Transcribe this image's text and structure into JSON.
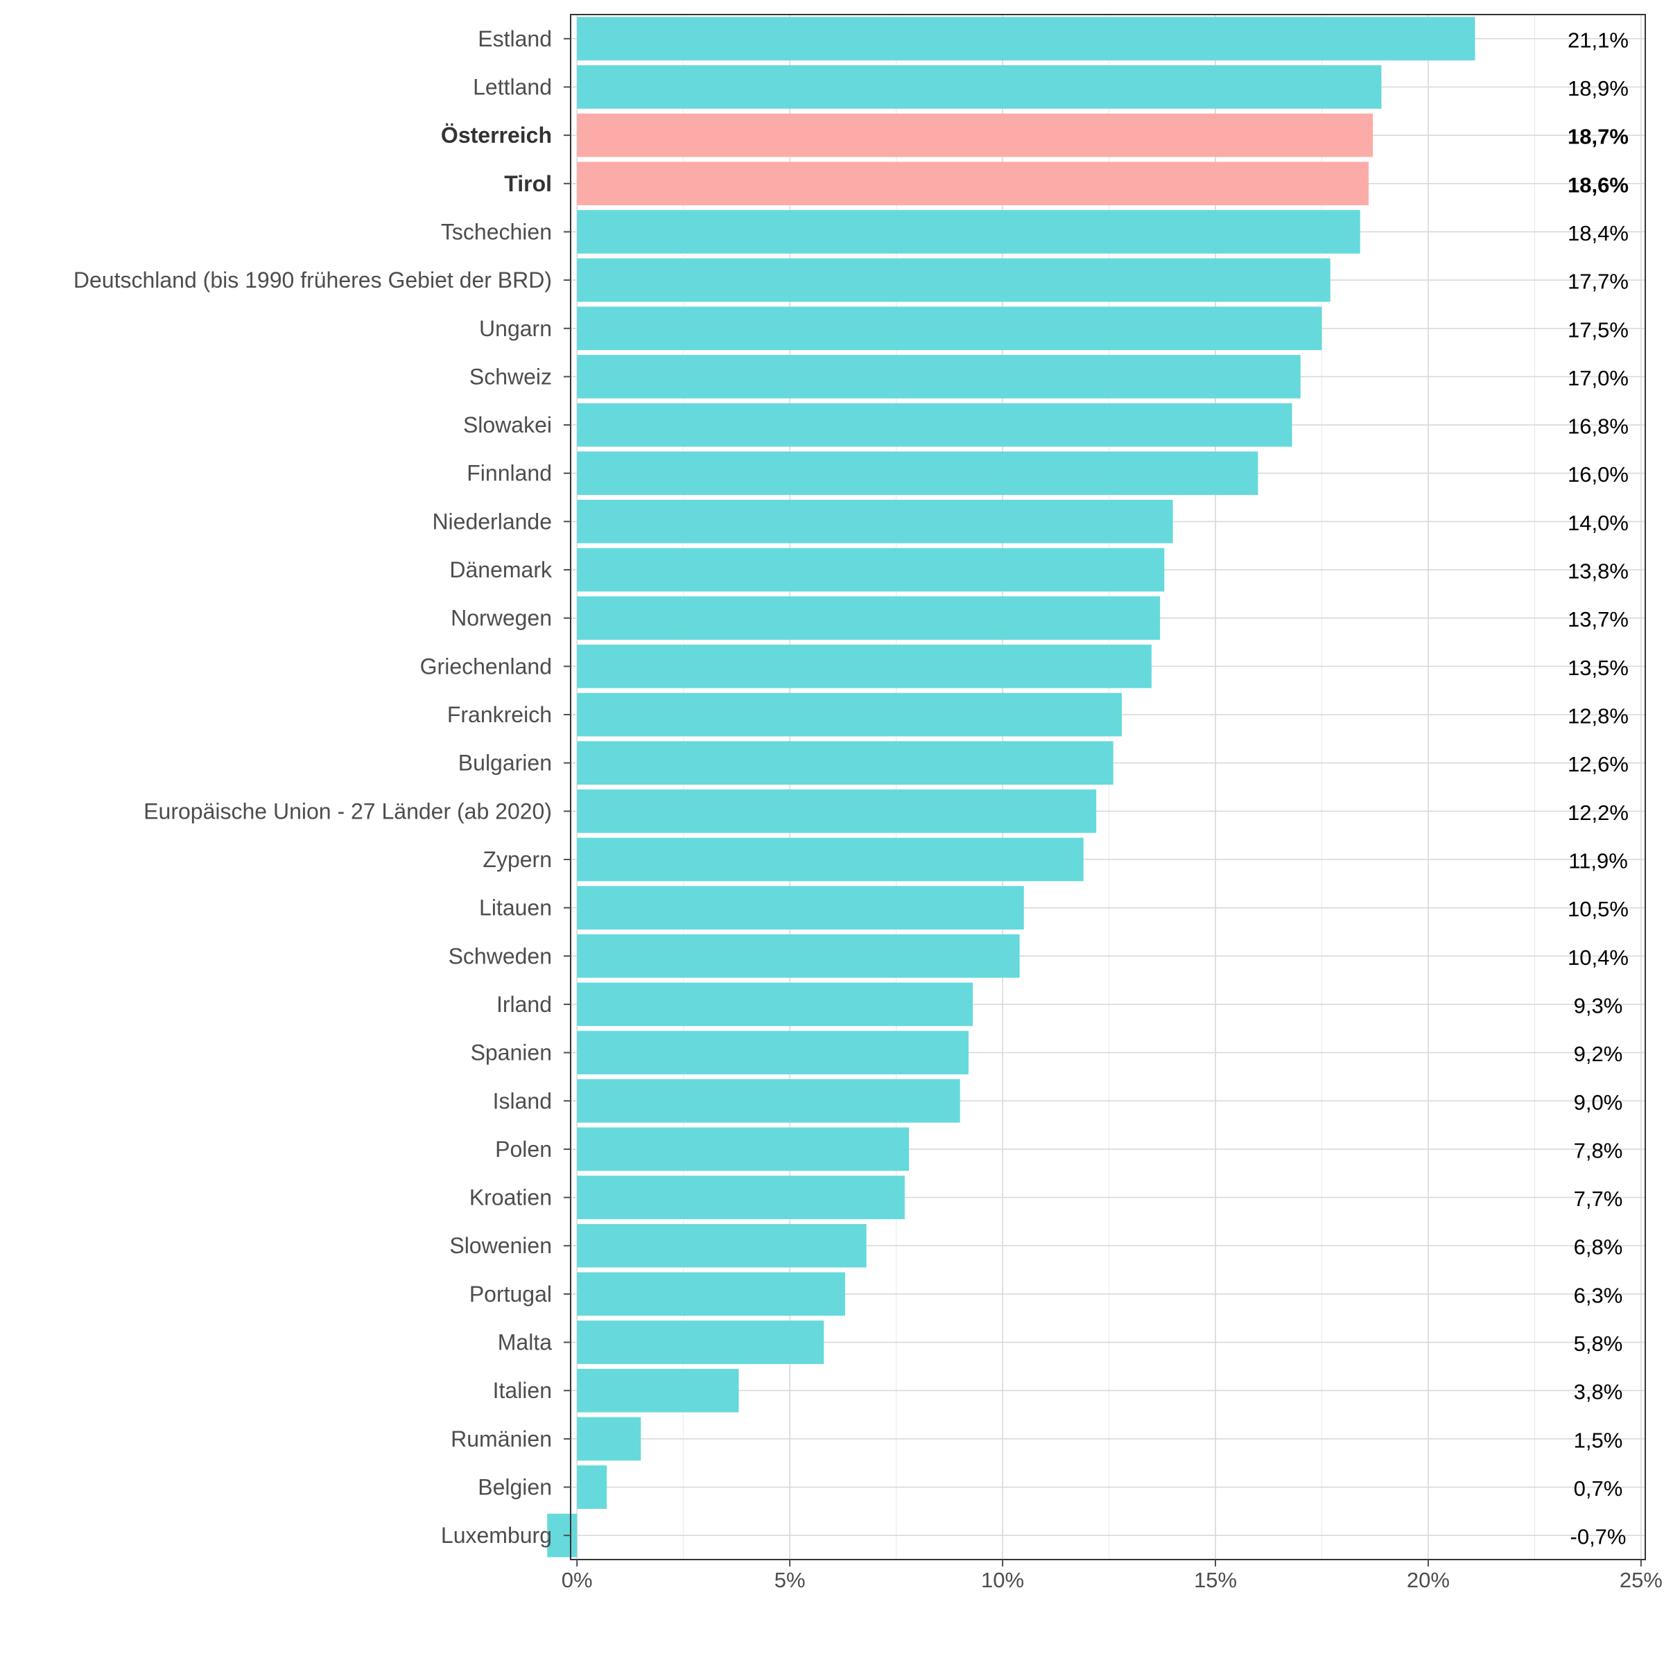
{
  "chart_data": {
    "type": "bar",
    "orientation": "horizontal",
    "title": "",
    "xlabel": "",
    "ylabel": "",
    "xlim": [
      0,
      25
    ],
    "x_ticks": [
      0,
      5,
      10,
      15,
      20,
      25
    ],
    "x_tick_labels": [
      "0%",
      "5%",
      "10%",
      "15%",
      "20%",
      "25%"
    ],
    "grid": true,
    "legend": "none",
    "colors": {
      "default": "#66d9dc",
      "highlight": "#fcaca8"
    },
    "categories": [
      "Estland",
      "Lettland",
      "Österreich",
      "Tirol",
      "Tschechien",
      "Deutschland (bis 1990 früheres Gebiet der BRD)",
      "Ungarn",
      "Schweiz",
      "Slowakei",
      "Finnland",
      "Niederlande",
      "Dänemark",
      "Norwegen",
      "Griechenland",
      "Frankreich",
      "Bulgarien",
      "Europäische Union - 27 Länder (ab 2020)",
      "Zypern",
      "Litauen",
      "Schweden",
      "Irland",
      "Spanien",
      "Island",
      "Polen",
      "Kroatien",
      "Slowenien",
      "Portugal",
      "Malta",
      "Italien",
      "Rumänien",
      "Belgien",
      "Luxemburg"
    ],
    "values": [
      21.1,
      18.9,
      18.7,
      18.6,
      18.4,
      17.7,
      17.5,
      17.0,
      16.8,
      16.0,
      14.0,
      13.8,
      13.7,
      13.5,
      12.8,
      12.6,
      12.2,
      11.9,
      10.5,
      10.4,
      9.3,
      9.2,
      9.0,
      7.8,
      7.7,
      6.8,
      6.3,
      5.8,
      3.8,
      1.5,
      0.7,
      -0.7
    ],
    "value_labels": [
      "21,1%",
      "18,9%",
      "18,7%",
      "18,6%",
      "18,4%",
      "17,7%",
      "17,5%",
      "17,0%",
      "16,8%",
      "16,0%",
      "14,0%",
      "13,8%",
      "13,7%",
      "13,5%",
      "12,8%",
      "12,6%",
      "12,2%",
      "11,9%",
      "10,5%",
      "10,4%",
      "9,3%",
      "9,2%",
      "9,0%",
      "7,8%",
      "7,7%",
      "6,8%",
      "6,3%",
      "5,8%",
      "3,8%",
      "1,5%",
      "0,7%",
      "-0,7%"
    ],
    "highlighted": [
      "Österreich",
      "Tirol"
    ]
  }
}
